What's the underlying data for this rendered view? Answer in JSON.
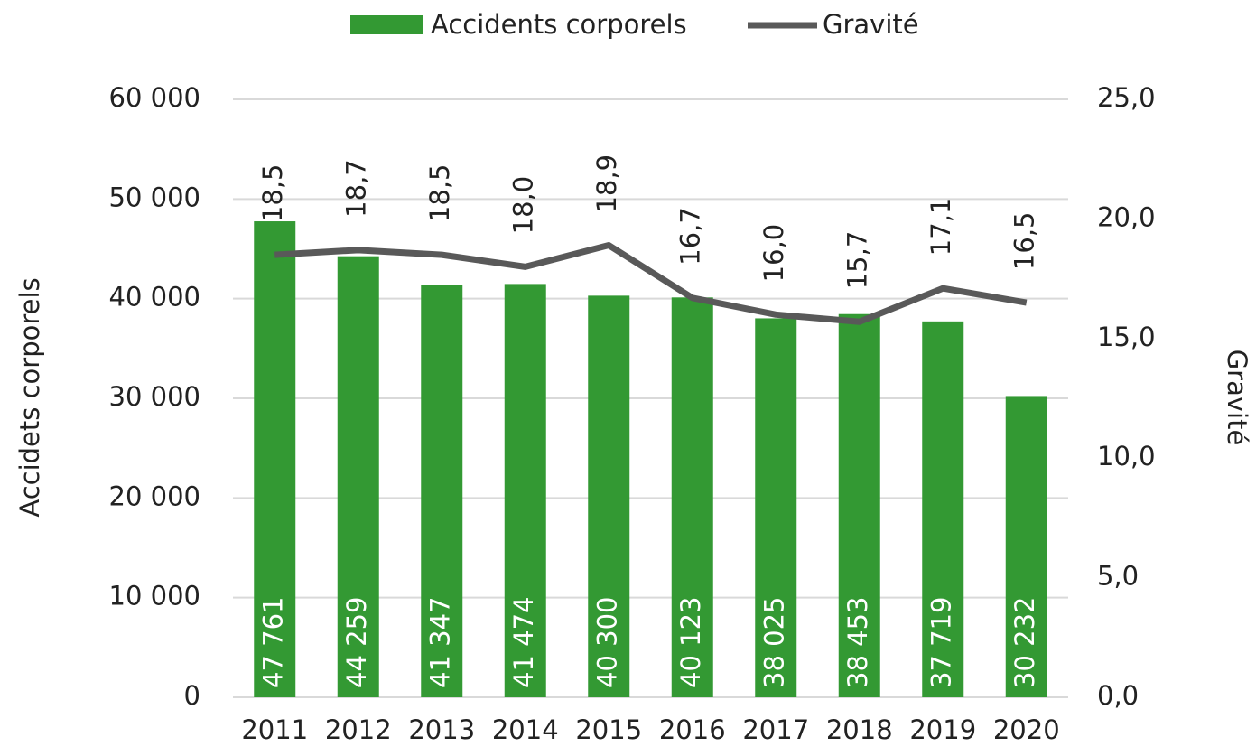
{
  "chart_data": {
    "type": "bar",
    "categories": [
      "2011",
      "2012",
      "2013",
      "2014",
      "2015",
      "2016",
      "2017",
      "2018",
      "2019",
      "2020"
    ],
    "series": [
      {
        "name": "Accidents corporels",
        "type": "bar",
        "color": "#339933",
        "values": [
          47761,
          44259,
          41347,
          41474,
          40300,
          40123,
          38025,
          38453,
          37719,
          30232
        ],
        "value_labels": [
          "47 761",
          "44 259",
          "41 347",
          "41 474",
          "40 300",
          "40 123",
          "38 025",
          "38 453",
          "37 719",
          "30 232"
        ]
      },
      {
        "name": "Gravité",
        "type": "line",
        "axis": "y2",
        "color": "#595959",
        "values": [
          18.5,
          18.7,
          18.5,
          18.0,
          18.9,
          16.7,
          16.0,
          15.7,
          17.1,
          16.5
        ],
        "value_labels": [
          "18,5",
          "18,7",
          "18,5",
          "18,0",
          "18,9",
          "16,7",
          "16,0",
          "15,7",
          "17,1",
          "16,5"
        ]
      }
    ],
    "ylabel": "Accidets corporels",
    "y2label": "Gravité",
    "ylim": [
      0,
      60000
    ],
    "yticks": [
      0,
      {
        "value": 10000,
        "label": "10 000"
      },
      {
        "value": 20000,
        "label": "20 000"
      },
      {
        "value": 30000,
        "label": "30 000"
      },
      {
        "value": 40000,
        "label": "40 000"
      },
      {
        "value": 50000,
        "label": "50 000"
      },
      {
        "value": 60000,
        "label": "60 000"
      }
    ],
    "y2lim": [
      0,
      25
    ],
    "y2ticks": [
      {
        "value": 0,
        "label": "0,0"
      },
      {
        "value": 5,
        "label": "5,0"
      },
      {
        "value": 10,
        "label": "10,0"
      },
      {
        "value": 15,
        "label": "15,0"
      },
      {
        "value": 20,
        "label": "20,0"
      },
      {
        "value": 25,
        "label": "25,0"
      }
    ],
    "grid": true,
    "legend": "top"
  }
}
